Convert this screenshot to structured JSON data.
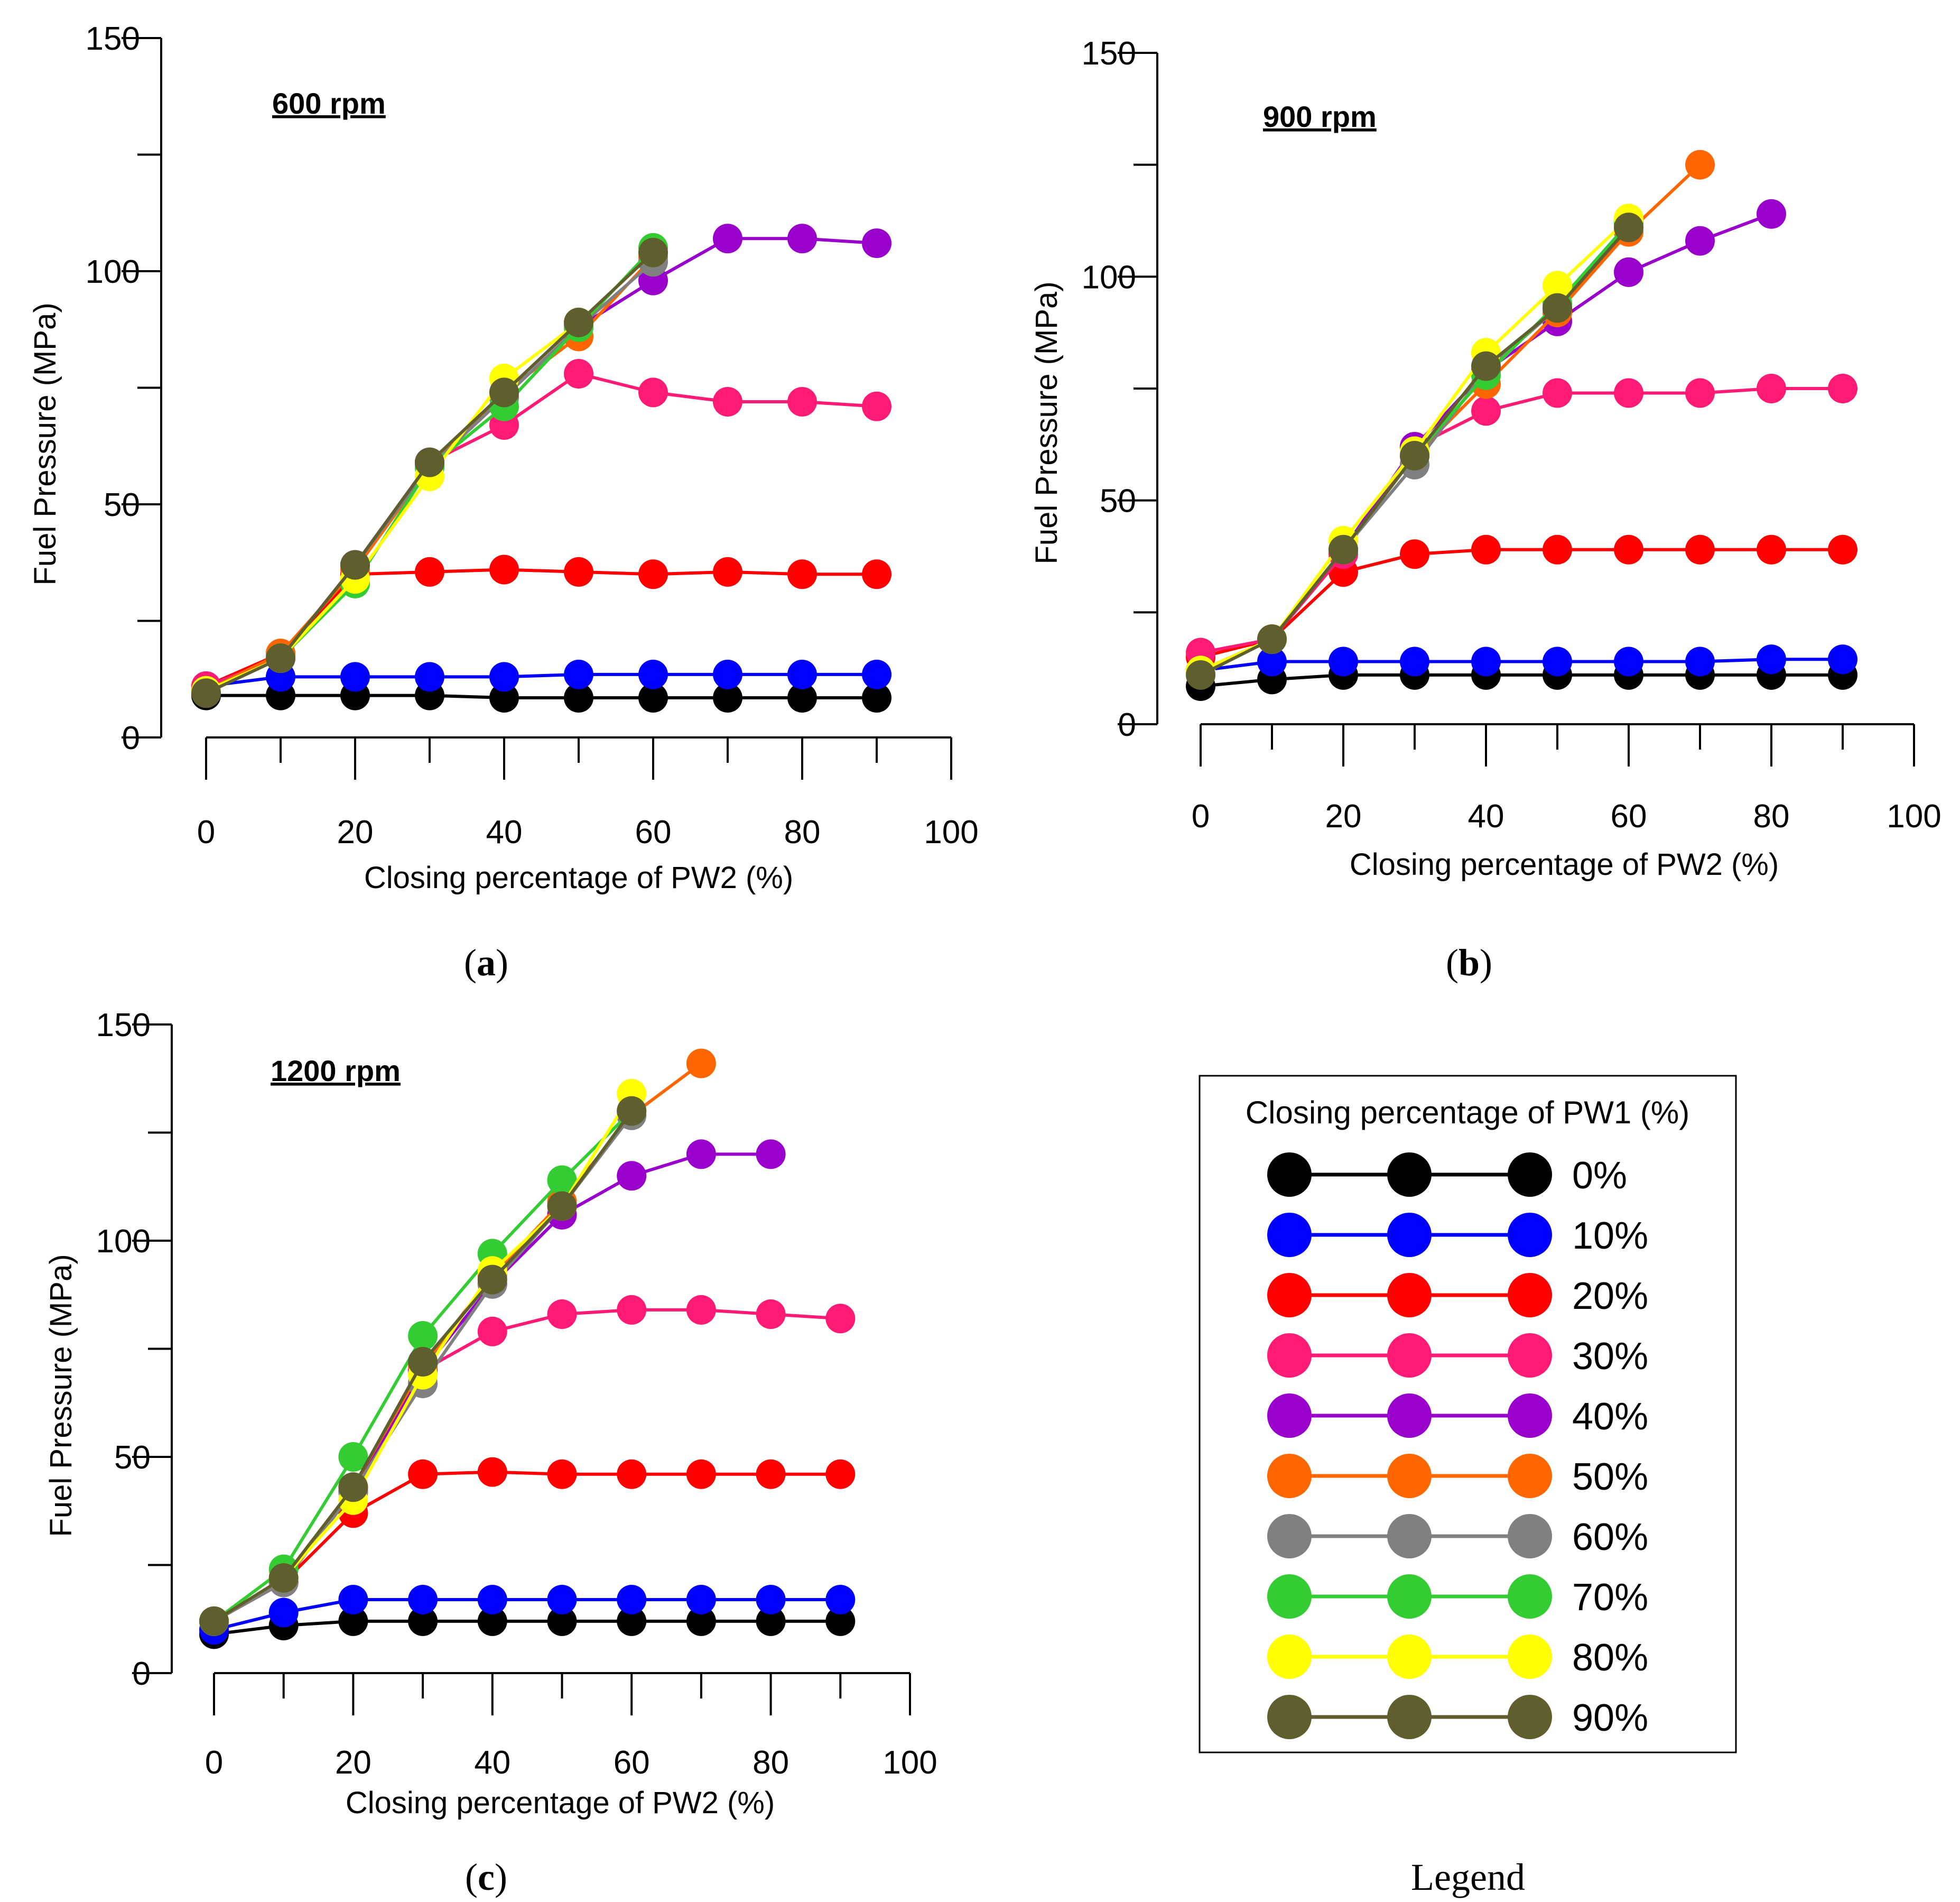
{
  "colors": {
    "0%": "#000000",
    "10%": "#0000ff",
    "20%": "#ff0000",
    "30%": "#ff1a75",
    "40%": "#9900cc",
    "50%": "#ff6600",
    "60%": "#808080",
    "70%": "#33cc33",
    "80%": "#ffff00",
    "90%": "#5e5e2e"
  },
  "legend": {
    "title": "Closing percentage of PW1 (%)",
    "entries": [
      "0%",
      "10%",
      "20%",
      "30%",
      "40%",
      "50%",
      "60%",
      "70%",
      "80%",
      "90%"
    ],
    "caption": "Legend"
  },
  "chart_data": [
    {
      "type": "line",
      "id": "a",
      "caption_letter": "a",
      "annotation": "600 rpm",
      "xlabel": "Closing percentage of PW2 (%)",
      "ylabel": "Fuel Pressure (MPa)",
      "xlim": [
        0,
        100
      ],
      "ylim": [
        0,
        150
      ],
      "xticks": [
        0,
        20,
        40,
        60,
        80,
        100
      ],
      "yticks": [
        0,
        50,
        100,
        150
      ],
      "series": [
        {
          "name": "0%",
          "x": [
            0,
            10,
            20,
            30,
            40,
            50,
            60,
            70,
            80,
            90
          ],
          "values": [
            9,
            9,
            9,
            9,
            8.5,
            8.5,
            8.5,
            8.5,
            8.5,
            8.5
          ]
        },
        {
          "name": "10%",
          "x": [
            0,
            10,
            20,
            30,
            40,
            50,
            60,
            70,
            80,
            90
          ],
          "values": [
            11,
            13,
            13,
            13,
            13,
            13.5,
            13.5,
            13.5,
            13.5,
            13.5
          ]
        },
        {
          "name": "20%",
          "x": [
            0,
            10,
            20,
            30,
            40,
            50,
            60,
            70,
            80,
            90
          ],
          "values": [
            11,
            18,
            35,
            35.5,
            36,
            35.5,
            35,
            35.5,
            35,
            35
          ]
        },
        {
          "name": "30%",
          "x": [
            0,
            10,
            20,
            30,
            40,
            50,
            60,
            70,
            80,
            90
          ],
          "values": [
            11,
            17,
            37,
            59,
            67,
            78,
            74,
            72,
            72,
            71
          ]
        },
        {
          "name": "40%",
          "x": [
            0,
            10,
            20,
            30,
            40,
            50,
            60,
            70,
            80,
            90
          ],
          "values": [
            10,
            17,
            37,
            59,
            73,
            88,
            98,
            107,
            107,
            106
          ]
        },
        {
          "name": "50%",
          "x": [
            0,
            10,
            20,
            30,
            40,
            50,
            60
          ],
          "values": [
            10,
            18,
            36,
            58,
            74,
            86,
            103
          ]
        },
        {
          "name": "60%",
          "x": [
            0,
            10,
            20,
            30,
            40,
            50,
            60
          ],
          "values": [
            10,
            17,
            37,
            58,
            73,
            88,
            102
          ]
        },
        {
          "name": "70%",
          "x": [
            0,
            10,
            20,
            30,
            40,
            50,
            60
          ],
          "values": [
            10,
            17,
            33,
            58,
            71,
            88,
            105
          ]
        },
        {
          "name": "80%",
          "x": [
            0,
            10,
            20,
            30,
            40,
            50,
            60
          ],
          "values": [
            10,
            17,
            34,
            56,
            77,
            89,
            104
          ]
        },
        {
          "name": "90%",
          "x": [
            0,
            10,
            20,
            30,
            40,
            50,
            60
          ],
          "values": [
            9.5,
            17,
            37,
            59,
            74,
            89,
            104
          ]
        }
      ]
    },
    {
      "type": "line",
      "id": "b",
      "caption_letter": "b",
      "annotation": "900 rpm",
      "xlabel": "Closing percentage of PW2 (%)",
      "ylabel": "Fuel Pressure (MPa)",
      "xlim": [
        0,
        100
      ],
      "ylim": [
        0,
        150
      ],
      "xticks": [
        0,
        20,
        40,
        60,
        80,
        100
      ],
      "yticks": [
        0,
        50,
        100,
        150
      ],
      "series": [
        {
          "name": "0%",
          "x": [
            0,
            10,
            20,
            30,
            40,
            50,
            60,
            70,
            80,
            90
          ],
          "values": [
            8.5,
            10,
            11,
            11,
            11,
            11,
            11,
            11,
            11,
            11
          ]
        },
        {
          "name": "10%",
          "x": [
            0,
            10,
            20,
            30,
            40,
            50,
            60,
            70,
            80,
            90
          ],
          "values": [
            12,
            14,
            14,
            14,
            14,
            14,
            14,
            14,
            14.5,
            14.5
          ]
        },
        {
          "name": "20%",
          "x": [
            0,
            10,
            20,
            30,
            40,
            50,
            60,
            70,
            80,
            90
          ],
          "values": [
            15,
            19,
            34,
            38,
            39,
            39,
            39,
            39,
            39,
            39
          ]
        },
        {
          "name": "30%",
          "x": [
            0,
            10,
            20,
            30,
            40,
            50,
            60,
            70,
            80,
            90
          ],
          "values": [
            16,
            19,
            38,
            62,
            70,
            74,
            74,
            74,
            75,
            75
          ]
        },
        {
          "name": "40%",
          "x": [
            0,
            10,
            20,
            30,
            40,
            50,
            60,
            70,
            80
          ],
          "values": [
            12,
            19,
            39,
            62,
            79,
            90,
            101,
            108,
            114
          ]
        },
        {
          "name": "50%",
          "x": [
            0,
            10,
            20,
            30,
            40,
            50,
            60,
            70
          ],
          "values": [
            12,
            19,
            39,
            60,
            76,
            92,
            110,
            125
          ]
        },
        {
          "name": "60%",
          "x": [
            0,
            10,
            20,
            30,
            40,
            50,
            60
          ],
          "values": [
            12,
            19,
            39,
            58,
            79,
            93,
            112
          ]
        },
        {
          "name": "70%",
          "x": [
            0,
            10,
            20,
            30,
            40,
            50,
            60
          ],
          "values": [
            12,
            19,
            39,
            60,
            78,
            94,
            112
          ]
        },
        {
          "name": "80%",
          "x": [
            0,
            10,
            20,
            30,
            40,
            50,
            60
          ],
          "values": [
            12,
            19,
            41,
            61,
            83,
            98,
            113
          ]
        },
        {
          "name": "90%",
          "x": [
            0,
            10,
            20,
            30,
            40,
            50,
            60
          ],
          "values": [
            11,
            19,
            39,
            60,
            80,
            93,
            111
          ]
        }
      ]
    },
    {
      "type": "line",
      "id": "c",
      "caption_letter": "c",
      "annotation": "1200 rpm",
      "xlabel": "Closing percentage of PW2 (%)",
      "ylabel": "Fuel Pressure (MPa)",
      "xlim": [
        0,
        100
      ],
      "ylim": [
        0,
        150
      ],
      "xticks": [
        0,
        20,
        40,
        60,
        80,
        100
      ],
      "yticks": [
        0,
        50,
        100,
        150
      ],
      "series": [
        {
          "name": "0%",
          "x": [
            0,
            10,
            20,
            30,
            40,
            50,
            60,
            70,
            80,
            90
          ],
          "values": [
            9,
            11,
            12,
            12,
            12,
            12,
            12,
            12,
            12,
            12
          ]
        },
        {
          "name": "10%",
          "x": [
            0,
            10,
            20,
            30,
            40,
            50,
            60,
            70,
            80,
            90
          ],
          "values": [
            10,
            14,
            17,
            17,
            17,
            17,
            17,
            17,
            17,
            17
          ]
        },
        {
          "name": "20%",
          "x": [
            0,
            10,
            20,
            30,
            40,
            50,
            60,
            70,
            80,
            90
          ],
          "values": [
            12,
            21,
            37,
            46,
            46.5,
            46,
            46,
            46,
            46,
            46
          ]
        },
        {
          "name": "30%",
          "x": [
            0,
            10,
            20,
            30,
            40,
            50,
            60,
            70,
            80,
            90
          ],
          "values": [
            12,
            21,
            42,
            70,
            79,
            83,
            84,
            84,
            83,
            82
          ]
        },
        {
          "name": "40%",
          "x": [
            0,
            10,
            20,
            30,
            40,
            50,
            60,
            70,
            80
          ],
          "values": [
            12,
            21,
            42,
            70,
            90,
            106,
            115,
            120,
            120
          ]
        },
        {
          "name": "50%",
          "x": [
            0,
            10,
            20,
            30,
            40,
            50,
            60,
            70
          ],
          "values": [
            12,
            22,
            43,
            71,
            92,
            109,
            129,
            141
          ]
        },
        {
          "name": "60%",
          "x": [
            0,
            10,
            20,
            30,
            40,
            50,
            60
          ],
          "values": [
            12,
            21,
            42,
            67,
            90,
            108,
            129
          ]
        },
        {
          "name": "70%",
          "x": [
            0,
            10,
            20,
            30,
            40,
            50,
            60
          ],
          "values": [
            12,
            24,
            50,
            78,
            97,
            114,
            130
          ]
        },
        {
          "name": "80%",
          "x": [
            0,
            10,
            20,
            30,
            40,
            50,
            60
          ],
          "values": [
            12,
            22,
            40,
            69,
            93,
            108,
            134
          ]
        },
        {
          "name": "90%",
          "x": [
            0,
            10,
            20,
            30,
            40,
            50,
            60
          ],
          "values": [
            12,
            22,
            43,
            72,
            91,
            108,
            130
          ]
        }
      ]
    }
  ]
}
